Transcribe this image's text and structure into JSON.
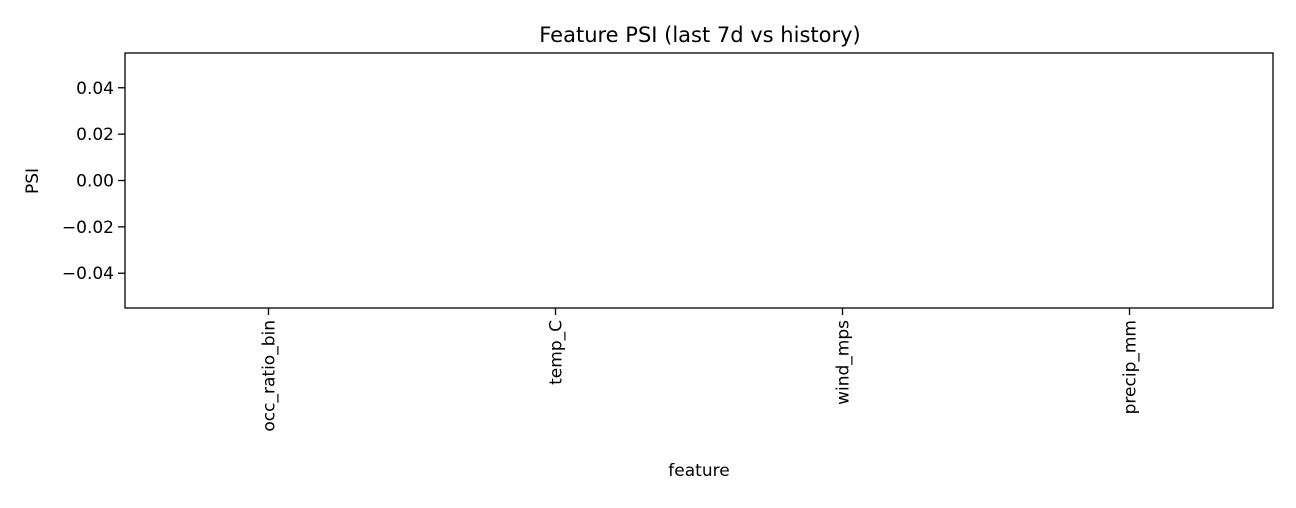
{
  "chart_data": {
    "type": "bar",
    "title": "Feature PSI (last 7d vs history)",
    "xlabel": "feature",
    "ylabel": "PSI",
    "categories": [
      "occ_ratio_bin",
      "temp_C",
      "wind_mps",
      "precip_mm"
    ],
    "values": [
      0,
      0,
      0,
      0
    ],
    "ylim": [
      -0.055,
      0.055
    ],
    "yticks": [
      0.04,
      0.02,
      0.0,
      -0.02,
      -0.04
    ],
    "ytick_labels": [
      "0.04",
      "0.02",
      "0.00",
      "−0.02",
      "−0.04"
    ],
    "grid": false,
    "legend": "none",
    "colors": {
      "axes": "#000000",
      "background": "#ffffff",
      "bar": "#1f77b4"
    }
  }
}
